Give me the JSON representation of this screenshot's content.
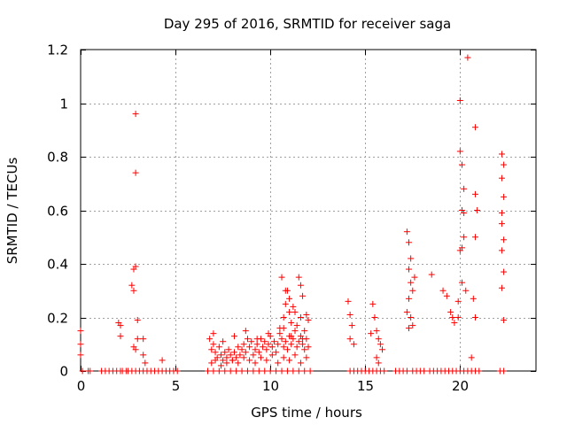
{
  "chart_data": {
    "type": "scatter",
    "title": "Day 295 of 2016, SRMTID for receiver saga",
    "xlabel": "GPS time / hours",
    "ylabel": "SRMTID / TECUs",
    "xlim": [
      0,
      24
    ],
    "ylim": [
      0,
      1.2
    ],
    "xticks": [
      0,
      5,
      10,
      15,
      20
    ],
    "xtick_labels": [
      "0",
      "5",
      "10",
      "15",
      "20"
    ],
    "yticks": [
      0,
      0.2,
      0.4,
      0.6,
      0.8,
      1,
      1.2
    ],
    "ytick_labels": [
      "0",
      "0.2",
      "0.4",
      "0.6",
      "0.8",
      "1",
      "1.2"
    ],
    "grid": true,
    "marker": "+",
    "series": [
      {
        "name": "SRMTID",
        "color": "#ff0000",
        "x": [
          0.0,
          0.0,
          0.0,
          0.1,
          0.4,
          0.5,
          1.1,
          1.3,
          1.5,
          1.7,
          1.9,
          2.1,
          2.2,
          2.4,
          2.5,
          2.7,
          2.9,
          3.1,
          3.3,
          3.5,
          3.7,
          3.9,
          4.1,
          4.3,
          4.5,
          4.7,
          4.9,
          5.1,
          6.7,
          7.0,
          7.3,
          7.6,
          7.9,
          8.2,
          8.5,
          8.8,
          9.1,
          9.4,
          9.7,
          10.0,
          10.3,
          10.6,
          10.9,
          11.2,
          11.5,
          11.8,
          12.1,
          14.2,
          14.4,
          14.6,
          14.8,
          15.0,
          15.2,
          15.4,
          15.6,
          15.8,
          16.0,
          16.6,
          16.8,
          17.0,
          17.2,
          17.5,
          17.7,
          17.9,
          18.1,
          18.4,
          18.6,
          18.8,
          19.0,
          19.2,
          19.4,
          19.6,
          19.8,
          20.0,
          20.2,
          20.4,
          20.6,
          20.8,
          21.0,
          22.1,
          22.3,
          2.0,
          2.1,
          2.1,
          2.7,
          2.8,
          2.8,
          2.9,
          2.9,
          2.9,
          3.0,
          3.0,
          2.8,
          2.9,
          3.3,
          3.3,
          3.4,
          4.3,
          6.8,
          6.9,
          7.0,
          7.1,
          7.2,
          7.3,
          7.4,
          7.5,
          7.6,
          7.7,
          7.8,
          7.9,
          8.0,
          8.1,
          8.2,
          8.3,
          8.4,
          8.5,
          8.6,
          8.7,
          8.8,
          8.9,
          9.0,
          9.1,
          9.2,
          9.3,
          9.4,
          9.5,
          9.6,
          9.7,
          9.8,
          9.9,
          10.0,
          10.1,
          10.2,
          10.3,
          10.4,
          10.5,
          10.6,
          10.7,
          10.8,
          10.9,
          11.0,
          11.1,
          11.2,
          11.3,
          11.4,
          11.5,
          11.6,
          11.7,
          11.8,
          11.9,
          12.0,
          6.9,
          7.1,
          7.4,
          7.7,
          8.0,
          8.3,
          8.6,
          8.9,
          9.2,
          9.5,
          9.8,
          10.1,
          10.4,
          10.7,
          11.0,
          11.3,
          11.6,
          11.9,
          7.0,
          7.5,
          8.1,
          8.7,
          9.3,
          9.9,
          10.5,
          11.1,
          11.7,
          10.7,
          10.8,
          10.9,
          11.0,
          11.1,
          11.5,
          11.6,
          11.7,
          11.9,
          12.0,
          10.6,
          10.8,
          11.0,
          11.2,
          11.4,
          11.8,
          10.7,
          11.3,
          11.6,
          14.1,
          14.2,
          14.3,
          14.2,
          14.4,
          15.4,
          15.5,
          15.6,
          15.7,
          15.8,
          15.9,
          15.6,
          15.7,
          15.3,
          17.2,
          17.3,
          17.4,
          17.3,
          17.4,
          17.5,
          17.3,
          17.2,
          17.6,
          17.4,
          17.5,
          17.3,
          18.5,
          19.1,
          19.3,
          19.5,
          19.6,
          19.7,
          19.9,
          19.9,
          20.0,
          20.0,
          20.1,
          20.1,
          20.2,
          20.2,
          20.1,
          20.0,
          20.1,
          20.2,
          20.3,
          20.4,
          20.8,
          20.8,
          20.9,
          20.8,
          20.7,
          20.6,
          20.8,
          22.2,
          22.3,
          22.2,
          22.3,
          22.2,
          22.2,
          22.3,
          22.2,
          22.3,
          22.2,
          22.3
        ],
        "y": [
          0.15,
          0.1,
          0.06,
          0.0,
          0.0,
          0.0,
          0.0,
          0.0,
          0.0,
          0.0,
          0.0,
          0.0,
          0.0,
          0.0,
          0.0,
          0.0,
          0.0,
          0.0,
          0.0,
          0.0,
          0.0,
          0.0,
          0.0,
          0.0,
          0.0,
          0.0,
          0.0,
          0.0,
          0.0,
          0.0,
          0.0,
          0.0,
          0.0,
          0.0,
          0.0,
          0.0,
          0.0,
          0.0,
          0.0,
          0.0,
          0.0,
          0.0,
          0.0,
          0.0,
          0.0,
          0.0,
          0.0,
          0.0,
          0.0,
          0.0,
          0.0,
          0.0,
          0.0,
          0.0,
          0.0,
          0.0,
          0.0,
          0.0,
          0.0,
          0.0,
          0.0,
          0.0,
          0.0,
          0.0,
          0.0,
          0.0,
          0.0,
          0.0,
          0.0,
          0.0,
          0.0,
          0.0,
          0.0,
          0.0,
          0.0,
          0.0,
          0.0,
          0.0,
          0.0,
          0.0,
          0.0,
          0.18,
          0.17,
          0.13,
          0.32,
          0.3,
          0.38,
          0.96,
          0.74,
          0.39,
          0.19,
          0.12,
          0.09,
          0.08,
          0.12,
          0.06,
          0.03,
          0.04,
          0.12,
          0.08,
          0.1,
          0.07,
          0.05,
          0.09,
          0.06,
          0.04,
          0.07,
          0.05,
          0.08,
          0.06,
          0.04,
          0.07,
          0.05,
          0.09,
          0.06,
          0.08,
          0.1,
          0.07,
          0.12,
          0.09,
          0.11,
          0.06,
          0.08,
          0.1,
          0.07,
          0.12,
          0.09,
          0.11,
          0.08,
          0.1,
          0.13,
          0.09,
          0.11,
          0.07,
          0.1,
          0.14,
          0.12,
          0.09,
          0.11,
          0.08,
          0.13,
          0.1,
          0.12,
          0.15,
          0.09,
          0.11,
          0.13,
          0.1,
          0.08,
          0.12,
          0.09,
          0.03,
          0.04,
          0.02,
          0.03,
          0.04,
          0.03,
          0.05,
          0.04,
          0.03,
          0.05,
          0.04,
          0.06,
          0.03,
          0.05,
          0.04,
          0.06,
          0.03,
          0.05,
          0.14,
          0.11,
          0.13,
          0.15,
          0.12,
          0.14,
          0.16,
          0.13,
          0.12,
          0.2,
          0.25,
          0.3,
          0.22,
          0.18,
          0.35,
          0.32,
          0.28,
          0.21,
          0.19,
          0.35,
          0.3,
          0.27,
          0.24,
          0.17,
          0.15,
          0.16,
          0.22,
          0.2,
          0.26,
          0.21,
          0.17,
          0.12,
          0.1,
          0.25,
          0.2,
          0.15,
          0.12,
          0.1,
          0.08,
          0.05,
          0.03,
          0.14,
          0.52,
          0.48,
          0.42,
          0.38,
          0.33,
          0.3,
          0.27,
          0.22,
          0.35,
          0.2,
          0.17,
          0.16,
          0.36,
          0.3,
          0.28,
          0.22,
          0.2,
          0.18,
          0.26,
          0.2,
          1.01,
          0.82,
          0.77,
          0.6,
          0.59,
          0.5,
          0.46,
          0.45,
          0.33,
          0.68,
          0.3,
          1.17,
          0.91,
          0.66,
          0.6,
          0.5,
          0.27,
          0.05,
          0.2,
          0.81,
          0.77,
          0.72,
          0.65,
          0.59,
          0.55,
          0.49,
          0.45,
          0.37,
          0.31,
          0.19
        ]
      }
    ]
  }
}
